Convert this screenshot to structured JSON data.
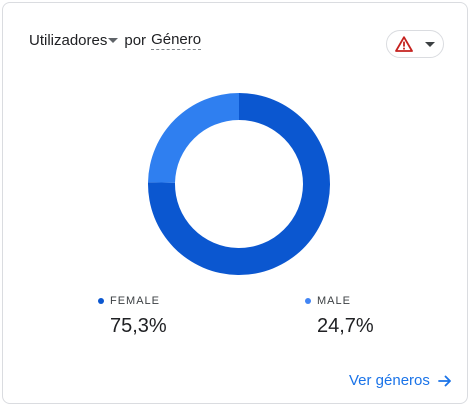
{
  "header": {
    "metric_label": "Utilizadores",
    "by_label": "por",
    "dimension_label": "Género"
  },
  "alert": {
    "icon": "warning-icon",
    "color": "#c5221f"
  },
  "chart_data": {
    "type": "pie",
    "categories": [
      "FEMALE",
      "MALE"
    ],
    "values": [
      75.3,
      24.7
    ],
    "value_labels": [
      "75,3%",
      "24,7%"
    ],
    "colors": [
      "#0b57d0",
      "#2f7ff0"
    ],
    "title": ""
  },
  "legend": [
    {
      "label": "FEMALE",
      "value": "75,3%",
      "color": "#0b57d0"
    },
    {
      "label": "MALE",
      "value": "24,7%",
      "color": "#4285f4"
    }
  ],
  "footer": {
    "link_label": "Ver géneros",
    "icon": "arrow-right-icon"
  }
}
